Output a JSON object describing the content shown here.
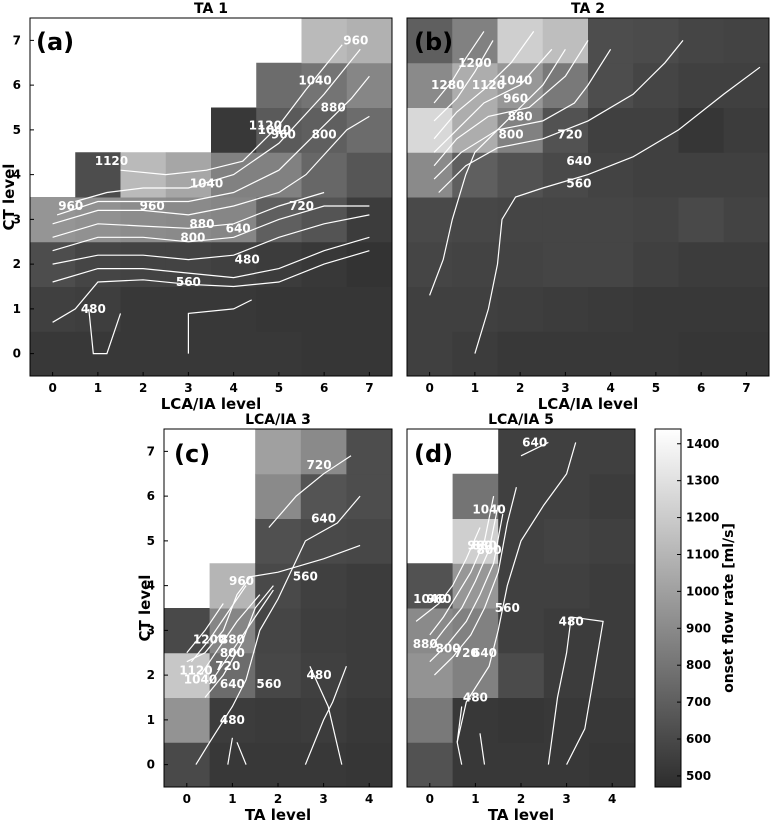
{
  "chart_data": [
    {
      "type": "heatmap",
      "title": "TA 1",
      "panel_label": "(a)",
      "xlabel": "LCA/IA level",
      "ylabel": "CT level",
      "x_ticks": [
        "0",
        "1",
        "2",
        "3",
        "4",
        "5",
        "6",
        "7"
      ],
      "y_ticks": [
        "0",
        "1",
        "2",
        "3",
        "4",
        "5",
        "6",
        "7"
      ],
      "note": "grid rows listed from CT level 0 (bottom) to 7 (top); columns LCA/IA level 0..7; null = not shown (white)",
      "grid": [
        [
          520,
          520,
          520,
          520,
          520,
          520,
          510,
          510
        ],
        [
          560,
          550,
          520,
          520,
          520,
          510,
          510,
          510
        ],
        [
          620,
          580,
          570,
          570,
          560,
          540,
          520,
          500
        ],
        [
          950,
          930,
          910,
          900,
          880,
          700,
          650,
          540
        ],
        [
          null,
          620,
          1120,
          1030,
          860,
          860,
          740,
          660
        ],
        [
          null,
          null,
          null,
          null,
          520,
          680,
          700,
          760
        ],
        [
          null,
          null,
          null,
          null,
          null,
          760,
          800,
          880
        ],
        [
          null,
          null,
          null,
          null,
          null,
          null,
          1120,
          1080
        ]
      ],
      "contour_labels": [
        {
          "text": "480",
          "x": 0.9,
          "y": 1.0
        },
        {
          "text": "480",
          "x": 4.3,
          "y": 2.1
        },
        {
          "text": "560",
          "x": 3.0,
          "y": 1.6
        },
        {
          "text": "640",
          "x": 4.1,
          "y": 2.8
        },
        {
          "text": "720",
          "x": 5.5,
          "y": 3.3
        },
        {
          "text": "800",
          "x": 3.1,
          "y": 2.6
        },
        {
          "text": "880",
          "x": 3.3,
          "y": 2.9
        },
        {
          "text": "960",
          "x": 0.4,
          "y": 3.3
        },
        {
          "text": "960",
          "x": 2.2,
          "y": 3.3
        },
        {
          "text": "1040",
          "x": 3.4,
          "y": 3.8
        },
        {
          "text": "1120",
          "x": 1.3,
          "y": 4.3
        },
        {
          "text": "1120",
          "x": 4.7,
          "y": 5.1
        },
        {
          "text": "1040",
          "x": 4.9,
          "y": 5.0
        },
        {
          "text": "960",
          "x": 5.1,
          "y": 4.9
        },
        {
          "text": "800",
          "x": 6.0,
          "y": 4.9
        },
        {
          "text": "880",
          "x": 6.2,
          "y": 5.5
        },
        {
          "text": "1040",
          "x": 5.8,
          "y": 6.1
        },
        {
          "text": "960",
          "x": 6.7,
          "y": 7.0
        }
      ]
    },
    {
      "type": "heatmap",
      "title": "TA 2",
      "panel_label": "(b)",
      "xlabel": "LCA/IA level",
      "ylabel": "",
      "x_ticks": [
        "0",
        "1",
        "2",
        "3",
        "4",
        "5",
        "6",
        "7"
      ],
      "y_ticks": [],
      "grid": [
        [
          560,
          540,
          520,
          520,
          520,
          520,
          510,
          510
        ],
        [
          560,
          560,
          550,
          540,
          530,
          520,
          520,
          520
        ],
        [
          580,
          570,
          570,
          580,
          580,
          560,
          540,
          540
        ],
        [
          600,
          590,
          580,
          580,
          580,
          570,
          600,
          570
        ],
        [
          900,
          700,
          640,
          600,
          570,
          560,
          560,
          560
        ],
        [
          1260,
          1060,
          860,
          640,
          560,
          560,
          510,
          540
        ],
        [
          900,
          1060,
          960,
          820,
          620,
          580,
          560,
          560
        ],
        [
          700,
          860,
          1220,
          1140,
          620,
          610,
          580,
          570
        ]
      ],
      "contour_labels": [
        {
          "text": "1280",
          "x": 0.4,
          "y": 6.0
        },
        {
          "text": "1200",
          "x": 1.0,
          "y": 6.5
        },
        {
          "text": "1120",
          "x": 1.3,
          "y": 6.0
        },
        {
          "text": "1040",
          "x": 1.9,
          "y": 6.1
        },
        {
          "text": "960",
          "x": 1.9,
          "y": 5.7
        },
        {
          "text": "880",
          "x": 2.0,
          "y": 5.3
        },
        {
          "text": "800",
          "x": 1.8,
          "y": 4.9
        },
        {
          "text": "720",
          "x": 3.1,
          "y": 4.9
        },
        {
          "text": "640",
          "x": 3.3,
          "y": 4.3
        },
        {
          "text": "560",
          "x": 3.3,
          "y": 3.8
        }
      ]
    },
    {
      "type": "heatmap",
      "title": "LCA/IA 3",
      "panel_label": "(c)",
      "xlabel": "TA level",
      "ylabel": "CT level",
      "x_ticks": [
        "0",
        "1",
        "2",
        "3",
        "4"
      ],
      "y_ticks": [
        "0",
        "1",
        "2",
        "3",
        "4",
        "5",
        "6",
        "7"
      ],
      "grid": [
        [
          600,
          520,
          520,
          520,
          510
        ],
        [
          940,
          540,
          530,
          540,
          520
        ],
        [
          1180,
          760,
          590,
          560,
          540
        ],
        [
          600,
          880,
          580,
          550,
          540
        ],
        [
          null,
          1100,
          600,
          560,
          540
        ],
        [
          null,
          null,
          630,
          600,
          590
        ],
        [
          null,
          null,
          900,
          650,
          620
        ],
        [
          null,
          null,
          1000,
          900,
          620
        ]
      ],
      "contour_labels": [
        {
          "text": "1200",
          "x": 0.5,
          "y": 2.8
        },
        {
          "text": "1120",
          "x": 0.2,
          "y": 2.1
        },
        {
          "text": "1040",
          "x": 0.3,
          "y": 1.9
        },
        {
          "text": "960",
          "x": 1.2,
          "y": 4.1
        },
        {
          "text": "880",
          "x": 1.0,
          "y": 2.8
        },
        {
          "text": "800",
          "x": 1.0,
          "y": 2.5
        },
        {
          "text": "720",
          "x": 0.9,
          "y": 2.2
        },
        {
          "text": "640",
          "x": 1.0,
          "y": 1.8
        },
        {
          "text": "560",
          "x": 1.8,
          "y": 1.8
        },
        {
          "text": "480",
          "x": 1.0,
          "y": 1.0
        },
        {
          "text": "480",
          "x": 2.9,
          "y": 2.0
        },
        {
          "text": "560",
          "x": 2.6,
          "y": 4.2
        },
        {
          "text": "640",
          "x": 3.0,
          "y": 5.5
        },
        {
          "text": "720",
          "x": 2.9,
          "y": 6.7
        }
      ]
    },
    {
      "type": "heatmap",
      "title": "LCA/IA 5",
      "panel_label": "(d)",
      "xlabel": "TA level",
      "ylabel": "",
      "x_ticks": [
        "0",
        "1",
        "2",
        "3",
        "4"
      ],
      "y_ticks": [],
      "grid": [
        [
          640,
          520,
          520,
          520,
          510
        ],
        [
          820,
          520,
          510,
          520,
          520
        ],
        [
          940,
          860,
          610,
          540,
          540
        ],
        [
          900,
          860,
          560,
          540,
          540
        ],
        [
          640,
          960,
          560,
          560,
          540
        ],
        [
          null,
          1220,
          560,
          570,
          560
        ],
        [
          null,
          800,
          560,
          560,
          540
        ],
        [
          null,
          null,
          560,
          560,
          560
        ]
      ],
      "contour_labels": [
        {
          "text": "1040",
          "x": 0.0,
          "y": 3.7
        },
        {
          "text": "960",
          "x": 0.2,
          "y": 3.7
        },
        {
          "text": "880",
          "x": -0.1,
          "y": 2.7
        },
        {
          "text": "800",
          "x": 0.4,
          "y": 2.6
        },
        {
          "text": "720",
          "x": 0.8,
          "y": 2.5
        },
        {
          "text": "640",
          "x": 1.2,
          "y": 2.5
        },
        {
          "text": "560",
          "x": 1.7,
          "y": 3.5
        },
        {
          "text": "480",
          "x": 1.0,
          "y": 1.5
        },
        {
          "text": "480",
          "x": 3.1,
          "y": 3.2
        },
        {
          "text": "1040",
          "x": 1.3,
          "y": 5.7
        },
        {
          "text": "960",
          "x": 1.1,
          "y": 4.9
        },
        {
          "text": "880",
          "x": 1.2,
          "y": 4.9
        },
        {
          "text": "800",
          "x": 1.3,
          "y": 4.8
        },
        {
          "text": "640",
          "x": 2.3,
          "y": 7.2
        }
      ]
    }
  ],
  "colorbar": {
    "label": "onset flow rate [ml/s]",
    "ticks": [
      "500",
      "600",
      "700",
      "800",
      "900",
      "1000",
      "1100",
      "1200",
      "1300",
      "1400"
    ],
    "range": [
      470,
      1440
    ],
    "colormap": "gray"
  }
}
